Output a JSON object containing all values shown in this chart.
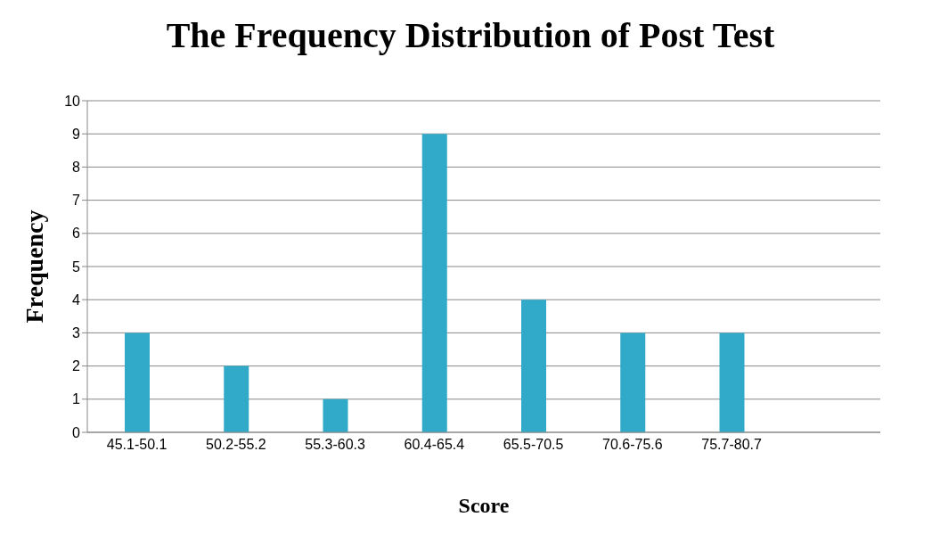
{
  "chart_data": {
    "type": "bar",
    "title": "The Frequency Distribution of Post Test",
    "xlabel": "Score",
    "ylabel": "Frequency",
    "categories": [
      "45.1-50.1",
      "50.2-55.2",
      "55.3-60.3",
      "60.4-65.4",
      "65.5-70.5",
      "70.6-75.6",
      "75.7-80.7",
      null
    ],
    "values": [
      3,
      2,
      1,
      9,
      4,
      3,
      3,
      null
    ],
    "color": "#31a9c9",
    "ylim": [
      0,
      10
    ],
    "yticks": [
      0,
      1,
      2,
      3,
      4,
      5,
      6,
      7,
      8,
      9,
      10
    ],
    "grid": "y"
  }
}
